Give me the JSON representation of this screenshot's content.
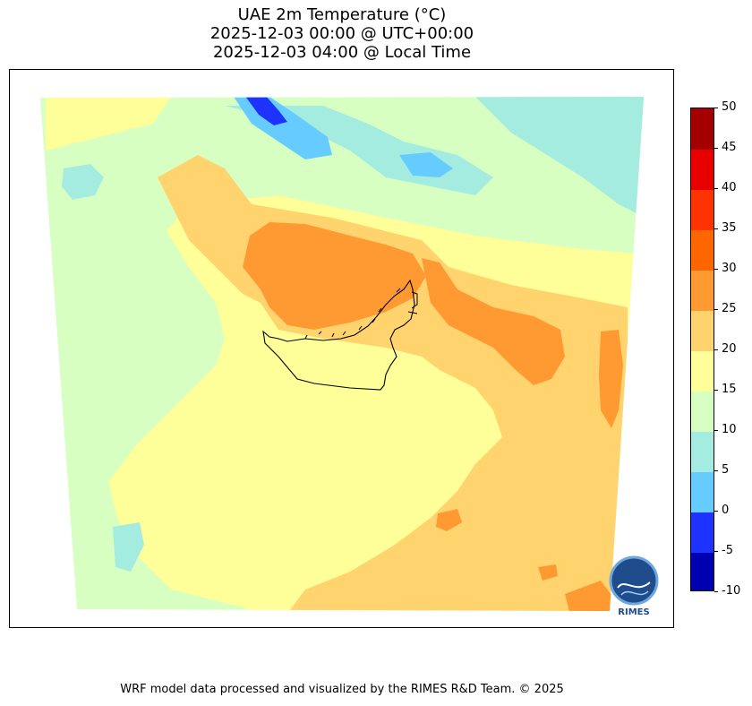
{
  "title": {
    "line1": "UAE 2m Temperature (°C)",
    "line2": "2025-12-03 00:00 @ UTC+00:00",
    "line3": "2025-12-03 04:00 @ Local Time"
  },
  "colorbar": {
    "labels": [
      "-10",
      "-5",
      "0",
      "5",
      "10",
      "15",
      "20",
      "25",
      "30",
      "35",
      "40",
      "45",
      "50"
    ],
    "colors": [
      "#0000b3",
      "#1f33ff",
      "#66ccff",
      "#a4ebe0",
      "#d8ffc2",
      "#ffff99",
      "#ffd36e",
      "#ff9a33",
      "#ff6600",
      "#ff3300",
      "#e80000",
      "#a50000"
    ]
  },
  "logo": {
    "text": "RIMES"
  },
  "footer": {
    "text": "WRF model data processed and visualized by the RIMES R&D Team. © 2025"
  }
}
